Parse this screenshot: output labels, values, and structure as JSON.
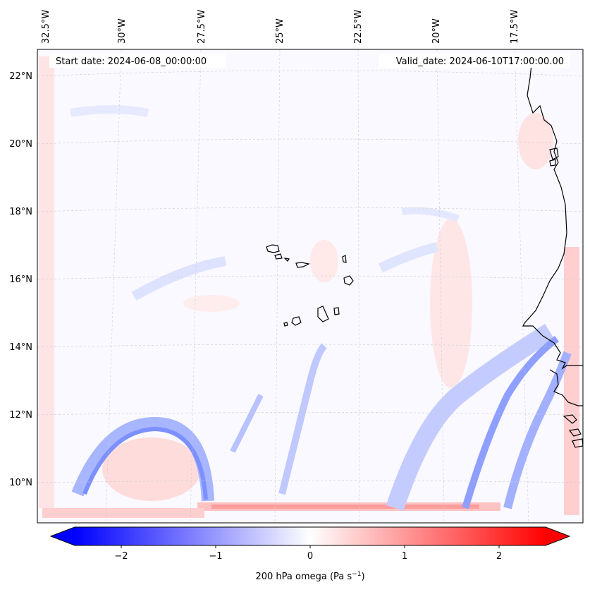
{
  "map": {
    "start_date_label": "Start date: 2024-06-08_00:00:00",
    "valid_date_label": "Valid_date: 2024-06-10T17:00:00.00",
    "longitude_ticks": [
      "32.5°W",
      "30°W",
      "27.5°W",
      "25°W",
      "22.5°W",
      "20°W",
      "17.5°W"
    ],
    "latitude_ticks": [
      "22°N",
      "20°N",
      "18°N",
      "16°N",
      "14°N",
      "12°N",
      "10°N"
    ]
  },
  "colorbar": {
    "ticks": [
      "−2",
      "−1",
      "0",
      "1",
      "2"
    ],
    "label_main": "200 hPa omega (Pa s",
    "label_sup": "−1",
    "label_end": ")",
    "range": [
      -2.6,
      2.6
    ]
  },
  "colors": {
    "negative": "#0000ff",
    "zero": "#ffffff",
    "positive": "#ff0000",
    "coastline": "#000000",
    "gridline": "#cccccc"
  }
}
